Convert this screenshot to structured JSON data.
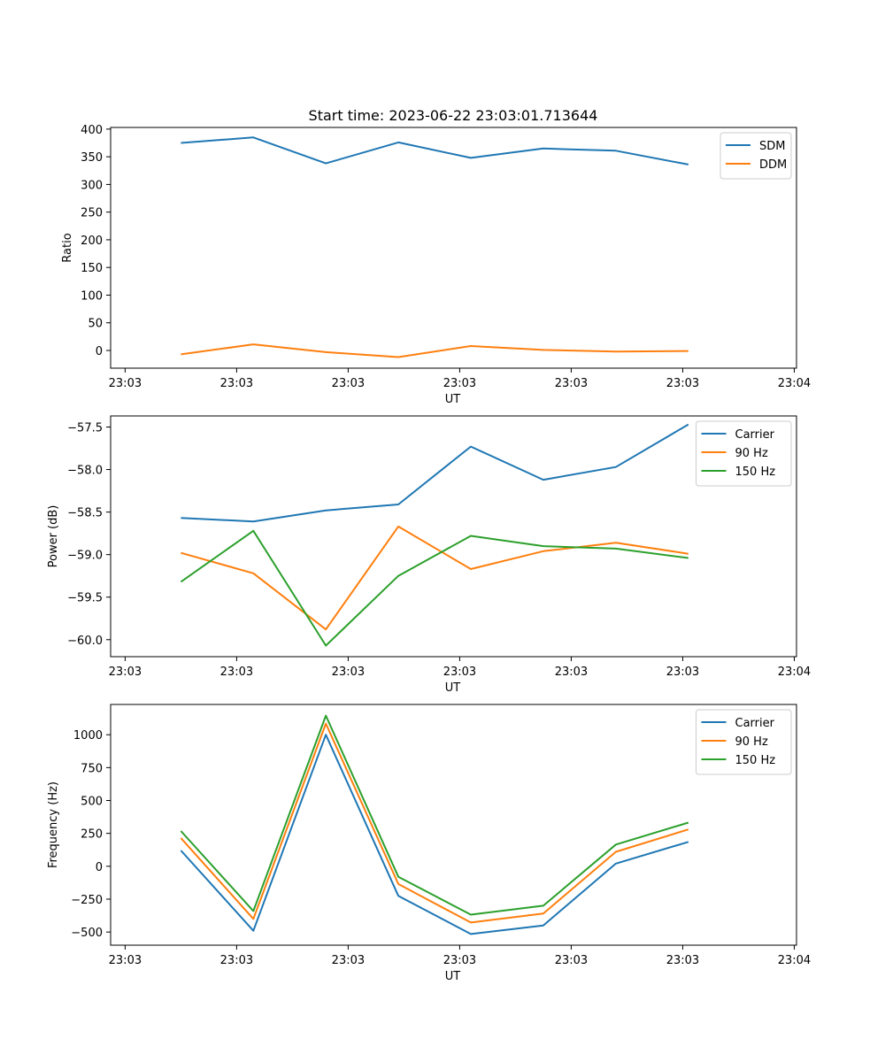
{
  "figure": {
    "title": "Start time: 2023-06-22 23:03:01.713644"
  },
  "chart_data": [
    {
      "type": "line",
      "title": "Start time: 2023-06-22 23:03:01.713644",
      "xlabel": "UT",
      "ylabel": "Ratio",
      "grid": false,
      "legend_position": "top-right",
      "x_ticks": [
        "23:03",
        "23:03",
        "23:03",
        "23:03",
        "23:03",
        "23:03",
        "23:04"
      ],
      "x_ticks_ordinal": [
        0,
        1,
        2,
        3,
        4,
        5,
        6
      ],
      "ylim": [
        -32,
        403
      ],
      "y_ticks": [
        0,
        50,
        100,
        150,
        200,
        250,
        300,
        350,
        400
      ],
      "xlim": [
        -0.13,
        6.02
      ],
      "series": [
        {
          "name": "SDM",
          "color": "#1f77b4",
          "x": [
            0.5,
            1.15,
            1.8,
            2.45,
            3.1,
            3.75,
            4.4,
            5.05
          ],
          "y": [
            375,
            385,
            338,
            376,
            348,
            365,
            361,
            336
          ]
        },
        {
          "name": "DDM",
          "color": "#ff7f0e",
          "x": [
            0.5,
            1.15,
            1.8,
            2.45,
            3.1,
            3.75,
            4.4,
            5.05
          ],
          "y": [
            -7,
            11,
            -3,
            -12,
            8,
            1,
            -2,
            -1
          ]
        }
      ]
    },
    {
      "type": "line",
      "xlabel": "UT",
      "ylabel": "Power (dB)",
      "grid": false,
      "legend_position": "top-right",
      "x_ticks": [
        "23:03",
        "23:03",
        "23:03",
        "23:03",
        "23:03",
        "23:03",
        "23:04"
      ],
      "x_ticks_ordinal": [
        0,
        1,
        2,
        3,
        4,
        5,
        6
      ],
      "ylim": [
        -60.2,
        -57.37
      ],
      "y_ticks": [
        -60.0,
        -59.5,
        -59.0,
        -58.5,
        -58.0,
        -57.5
      ],
      "y_tick_labels": [
        "−60.0",
        "−59.5",
        "−59.0",
        "−58.5",
        "−58.0",
        "−57.5"
      ],
      "xlim": [
        -0.13,
        6.02
      ],
      "series": [
        {
          "name": "Carrier",
          "color": "#1f77b4",
          "x": [
            0.5,
            1.15,
            1.8,
            2.45,
            3.1,
            3.75,
            4.4,
            5.05
          ],
          "y": [
            -58.57,
            -58.61,
            -58.48,
            -58.41,
            -57.73,
            -58.12,
            -57.97,
            -57.47
          ]
        },
        {
          "name": "90 Hz",
          "color": "#ff7f0e",
          "x": [
            0.5,
            1.15,
            1.8,
            2.45,
            3.1,
            3.75,
            4.4,
            5.05
          ],
          "y": [
            -58.98,
            -59.22,
            -59.88,
            -58.67,
            -59.17,
            -58.96,
            -58.86,
            -58.99
          ]
        },
        {
          "name": "150 Hz",
          "color": "#2ca02c",
          "x": [
            0.5,
            1.15,
            1.8,
            2.45,
            3.1,
            3.75,
            4.4,
            5.05
          ],
          "y": [
            -59.32,
            -58.72,
            -60.07,
            -59.25,
            -58.78,
            -58.9,
            -58.93,
            -59.04
          ]
        }
      ]
    },
    {
      "type": "line",
      "xlabel": "UT",
      "ylabel": "Frequency (Hz)",
      "grid": false,
      "legend_position": "top-right",
      "x_ticks": [
        "23:03",
        "23:03",
        "23:03",
        "23:03",
        "23:03",
        "23:03",
        "23:04"
      ],
      "x_ticks_ordinal": [
        0,
        1,
        2,
        3,
        4,
        5,
        6
      ],
      "ylim": [
        -600,
        1230
      ],
      "y_ticks": [
        -500,
        -250,
        0,
        250,
        500,
        750,
        1000
      ],
      "y_tick_labels": [
        "−500",
        "−250",
        "0",
        "250",
        "500",
        "750",
        "1000"
      ],
      "xlim": [
        -0.13,
        6.02
      ],
      "series": [
        {
          "name": "Carrier",
          "color": "#1f77b4",
          "x": [
            0.5,
            1.15,
            1.8,
            2.45,
            3.1,
            3.75,
            4.4,
            5.05
          ],
          "y": [
            120,
            -490,
            1000,
            -225,
            -515,
            -450,
            20,
            185
          ]
        },
        {
          "name": "90 Hz",
          "color": "#ff7f0e",
          "x": [
            0.5,
            1.15,
            1.8,
            2.45,
            3.1,
            3.75,
            4.4,
            5.05
          ],
          "y": [
            215,
            -400,
            1085,
            -135,
            -428,
            -360,
            110,
            280
          ]
        },
        {
          "name": "150 Hz",
          "color": "#2ca02c",
          "x": [
            0.5,
            1.15,
            1.8,
            2.45,
            3.1,
            3.75,
            4.4,
            5.05
          ],
          "y": [
            268,
            -340,
            1145,
            -80,
            -368,
            -300,
            165,
            332
          ]
        }
      ]
    }
  ]
}
